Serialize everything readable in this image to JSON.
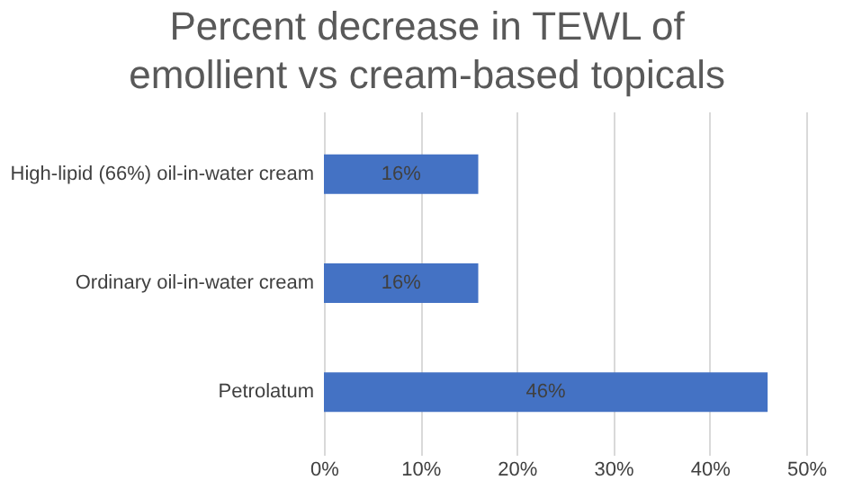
{
  "chart_data": {
    "type": "bar",
    "orientation": "horizontal",
    "title": "Percent decrease in TEWL of emollient vs cream-based topicals",
    "categories": [
      "High-lipid (66%) oil-in-water cream",
      "Ordinary oil-in-water cream",
      "Petrolatum"
    ],
    "values": [
      16,
      16,
      46
    ],
    "color": "#4472c4",
    "value_labels": [
      "16%",
      "16%",
      "46%"
    ],
    "xlim": [
      0,
      50
    ],
    "xticks": [
      {
        "value": 0,
        "label": "0%"
      },
      {
        "value": 10,
        "label": "10%"
      },
      {
        "value": 20,
        "label": "20%"
      },
      {
        "value": 30,
        "label": "30%"
      },
      {
        "value": 40,
        "label": "40%"
      },
      {
        "value": 50,
        "label": "50%"
      }
    ],
    "grid": "x"
  }
}
